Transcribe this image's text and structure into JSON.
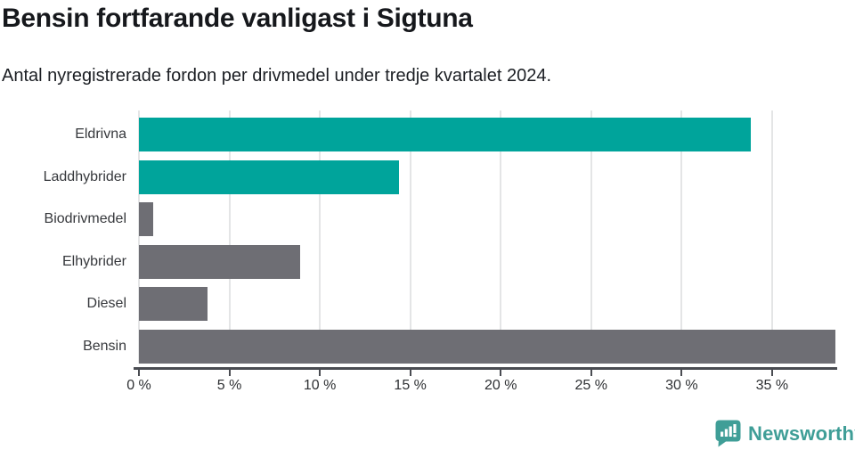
{
  "chart_data": {
    "type": "bar",
    "orientation": "horizontal",
    "title": "Bensin fortfarande vanligast i Sigtuna",
    "subtitle": "Antal nyregistrerade fordon per drivmedel under tredje kvartalet 2024.",
    "categories": [
      "Eldrivna",
      "Laddhybrider",
      "Biodrivmedel",
      "Elhybrider",
      "Diesel",
      "Bensin"
    ],
    "values": [
      33.8,
      14.4,
      0.8,
      8.9,
      3.8,
      38.5
    ],
    "unit": "%",
    "bar_colors": [
      "#00a49b",
      "#00a49b",
      "#6e6e74",
      "#6e6e74",
      "#6e6e74",
      "#6e6e74"
    ],
    "xlabel": "",
    "ylabel": "",
    "xlim": [
      0,
      38.6
    ],
    "x_ticks": [
      0,
      5,
      10,
      15,
      20,
      25,
      30,
      35
    ],
    "x_tick_labels": [
      "0 %",
      "5 %",
      "10 %",
      "15 %",
      "20 %",
      "25 %",
      "30 %",
      "35 %"
    ],
    "grid": "vertical",
    "legend": false
  },
  "branding": {
    "name": "Newsworthy",
    "color": "#3f9e97"
  },
  "colors": {
    "teal": "#00a49b",
    "gray": "#6e6e74",
    "axis": "#4a4c52",
    "gridline": "#e4e5e6",
    "title_text": "#16181c",
    "label_text": "#36383c"
  }
}
